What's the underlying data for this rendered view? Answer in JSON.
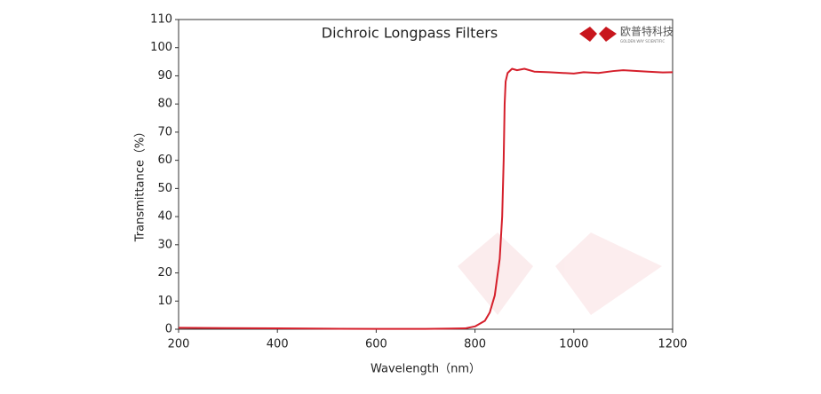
{
  "chart_data": {
    "type": "line",
    "title": "Dichroic Longpass Filters",
    "x_label": "Wavelength（nm）",
    "y_label": "Transmittance（%）",
    "logo": {
      "name": "欧普特科技",
      "tagline": "GOLDEN WAY SCIENTIFIC"
    },
    "x": [
      200,
      300,
      400,
      500,
      600,
      700,
      780,
      800,
      820,
      830,
      840,
      850,
      855,
      858,
      860,
      862,
      866,
      875,
      885,
      900,
      920,
      950,
      1000,
      1020,
      1050,
      1080,
      1100,
      1150,
      1180,
      1200
    ],
    "series": [
      {
        "name": "Transmittance",
        "color": "#d51f2b",
        "values": [
          0.5,
          0.4,
          0.3,
          0.2,
          0.1,
          0.1,
          0.3,
          1,
          3,
          6,
          12,
          25,
          40,
          60,
          80,
          88,
          91,
          92.5,
          92,
          92.5,
          91.5,
          91.3,
          90.8,
          91.3,
          91,
          91.7,
          92,
          91.5,
          91.2,
          91.3
        ]
      }
    ],
    "xlim": [
      200,
      1200
    ],
    "xticks": [
      200,
      400,
      600,
      800,
      1000,
      1200
    ],
    "ylim": [
      0,
      110
    ],
    "yticks": [
      0,
      10,
      20,
      30,
      40,
      50,
      60,
      70,
      80,
      90,
      100,
      110
    ],
    "grid": false
  }
}
